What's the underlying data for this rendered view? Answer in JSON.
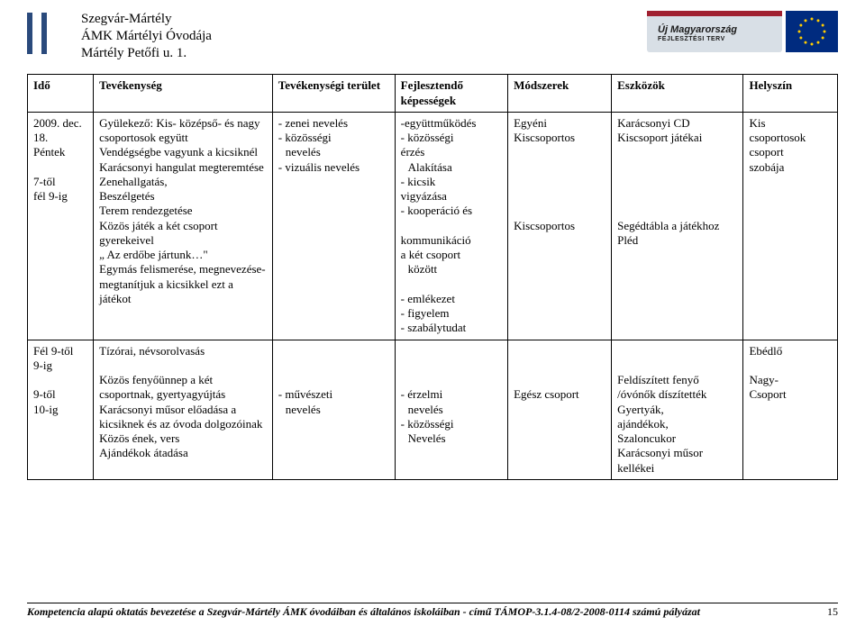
{
  "colors": {
    "bar": "#2a4a7c",
    "umo_bg": "#d8dfe6",
    "umo_stripe": "#a02030",
    "umo_text": "#1a1a1a",
    "eu_bg": "#002b7f",
    "eu_star": "#ffcc00",
    "border": "#000000",
    "text": "#000000"
  },
  "header": {
    "line1": "Szegvár-Mártély",
    "line2": "ÁMK Mártélyi Óvodája",
    "line3": "Mártély Petőfi u. 1.",
    "umo_line1": "Új Magyarország",
    "umo_line2": "FEJLESZTÉSI TERV"
  },
  "table": {
    "headers": {
      "time": "Idő",
      "activity": "Tevékenység",
      "area": "Tevékenységi terület",
      "skills": "Fejlesztendő képességek",
      "methods": "Módszerek",
      "tools": "Eszközök",
      "place": "Helyszín"
    },
    "row1": {
      "time": "2009. dec. 18.\nPéntek\n\n7-től\nfél 9-ig",
      "activity": "Gyülekező: Kis- középső- és nagy\ncsoportosok együtt\nVendégségbe vagyunk a kicsiknél\nKarácsonyi hangulat megteremtése\nZenehallgatás,\nBeszélgetés\nTerem rendezgetése\nKözös játék a két csoport gyerekeivel\n„ Az erdőbe jártunk…\"\nEgymás felismerése, megnevezése- megtanítjuk a kicsikkel ezt a játékot",
      "area_lines": [
        "- zenei nevelés",
        "- közösségi",
        "  nevelés",
        "- vizuális nevelés"
      ],
      "skills_lines": [
        "-együttműködés",
        "- közösségi",
        "érzés",
        "  Alakítása",
        "- kicsik",
        "vigyázása",
        "- kooperáció és",
        "",
        "kommunikáció",
        "a két csoport",
        " között",
        "",
        "- emlékezet",
        "- figyelem",
        "- szabálytudat"
      ],
      "methods_lines": [
        "Egyéni",
        "Kiscsoportos",
        "",
        "",
        "",
        "",
        "",
        "Kiscsoportos"
      ],
      "tools_lines": [
        "Karácsonyi CD",
        "Kiscsoport játékai",
        "",
        "",
        "",
        "",
        "",
        "Segédtábla a játékhoz",
        "Pléd"
      ],
      "place_lines": [
        "Kis",
        "csoportosok",
        "csoport",
        "szobája"
      ]
    },
    "row2": {
      "time": "Fél 9-től\n9-ig\n\n9-től\n10-ig",
      "activity": "Tízórai, névsorolvasás\n\nKözös fenyőünnep a két csoportnak, gyertyagyújtás\nKarácsonyi műsor előadása a kicsiknek és az óvoda dolgozóinak\nKözös ének, vers\nAjándékok átadása",
      "area_lines": [
        "",
        "",
        "",
        "- művészeti",
        "  nevelés"
      ],
      "skills_lines": [
        "",
        "",
        "",
        "- érzelmi",
        "  nevelés",
        "- közösségi",
        "  Nevelés"
      ],
      "methods_lines": [
        "",
        "",
        "",
        "Egész csoport"
      ],
      "tools_lines": [
        "",
        "",
        "Feldíszített fenyő",
        "/óvónők díszítették",
        "Gyertyák,",
        "ajándékok,",
        "Szaloncukor",
        "Karácsonyi műsor kellékei"
      ],
      "place_lines": [
        "Ebédlő",
        "",
        "Nagy-",
        "Csoport"
      ]
    }
  },
  "footer": {
    "text": "Kompetencia alapú oktatás bevezetése a Szegvár-Mártély ÁMK óvodáiban és általános iskoláiban - című TÁMOP-3.1.4-08/2-2008-0114 számú pályázat",
    "page": "15"
  }
}
